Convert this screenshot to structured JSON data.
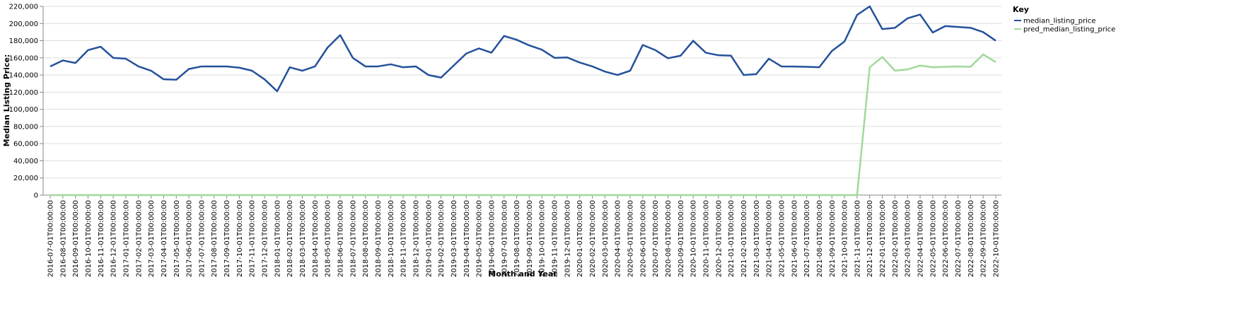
{
  "chart_data": {
    "type": "line",
    "x_label": "Month and Year",
    "y_label": "Median Listing Price:",
    "legend_title": "Key",
    "legend_position": "right",
    "grid": true,
    "categories": [
      "2016-07-01T00:00:00",
      "2016-08-01T00:00:00",
      "2016-09-01T00:00:00",
      "2016-10-01T00:00:00",
      "2016-11-01T00:00:00",
      "2016-12-01T00:00:00",
      "2017-01-01T00:00:00",
      "2017-02-01T00:00:00",
      "2017-03-01T00:00:00",
      "2017-04-01T00:00:00",
      "2017-05-01T00:00:00",
      "2017-06-01T00:00:00",
      "2017-07-01T00:00:00",
      "2017-08-01T00:00:00",
      "2017-09-01T00:00:00",
      "2017-10-01T00:00:00",
      "2017-11-01T00:00:00",
      "2017-12-01T00:00:00",
      "2018-01-01T00:00:00",
      "2018-02-01T00:00:00",
      "2018-03-01T00:00:00",
      "2018-04-01T00:00:00",
      "2018-05-01T00:00:00",
      "2018-06-01T00:00:00",
      "2018-07-01T00:00:00",
      "2018-08-01T00:00:00",
      "2018-09-01T00:00:00",
      "2018-10-01T00:00:00",
      "2018-11-01T00:00:00",
      "2018-12-01T00:00:00",
      "2019-01-01T00:00:00",
      "2019-02-01T00:00:00",
      "2019-03-01T00:00:00",
      "2019-04-01T00:00:00",
      "2019-05-01T00:00:00",
      "2019-06-01T00:00:00",
      "2019-07-01T00:00:00",
      "2019-08-01T00:00:00",
      "2019-09-01T00:00:00",
      "2019-10-01T00:00:00",
      "2019-11-01T00:00:00",
      "2019-12-01T00:00:00",
      "2020-01-01T00:00:00",
      "2020-02-01T00:00:00",
      "2020-03-01T00:00:00",
      "2020-04-01T00:00:00",
      "2020-05-01T00:00:00",
      "2020-06-01T00:00:00",
      "2020-07-01T00:00:00",
      "2020-08-01T00:00:00",
      "2020-09-01T00:00:00",
      "2020-10-01T00:00:00",
      "2020-11-01T00:00:00",
      "2020-12-01T00:00:00",
      "2021-01-01T00:00:00",
      "2021-02-01T00:00:00",
      "2021-03-01T00:00:00",
      "2021-04-01T00:00:00",
      "2021-05-01T00:00:00",
      "2021-06-01T00:00:00",
      "2021-07-01T00:00:00",
      "2021-08-01T00:00:00",
      "2021-09-01T00:00:00",
      "2021-10-01T00:00:00",
      "2021-11-01T00:00:00",
      "2021-12-01T00:00:00",
      "2022-01-01T00:00:00",
      "2022-02-01T00:00:00",
      "2022-03-01T00:00:00",
      "2022-04-01T00:00:00",
      "2022-05-01T00:00:00",
      "2022-06-01T00:00:00",
      "2022-07-01T00:00:00",
      "2022-08-01T00:00:00",
      "2022-09-01T00:00:00",
      "2022-10-01T00:00:00"
    ],
    "series": [
      {
        "name": "median_listing_price",
        "color": "#24519b",
        "values": [
          150000,
          157000,
          154000,
          169000,
          173000,
          160000,
          159000,
          150000,
          145000,
          135000,
          134500,
          147000,
          150000,
          150000,
          150000,
          148500,
          145000,
          135000,
          121000,
          149000,
          145000,
          150000,
          172000,
          186500,
          160000,
          150000,
          150000,
          152500,
          149000,
          150000,
          140000,
          137000,
          151000,
          165000,
          171000,
          166000,
          185500,
          181000,
          174500,
          169500,
          160000,
          160500,
          154500,
          150000,
          144000,
          140000,
          145000,
          175000,
          169000,
          159500,
          162500,
          179900,
          166000,
          163000,
          162500,
          140000,
          141000,
          159000,
          150000,
          149900,
          149500,
          149000,
          168000,
          179000,
          210000,
          220000,
          193500,
          195000,
          206000,
          210500,
          189500,
          197000,
          196000,
          195000,
          190000,
          180000
        ]
      },
      {
        "name": "pred_median_listing_price",
        "color": "#a1d99b",
        "values": [
          0,
          0,
          0,
          0,
          0,
          0,
          0,
          0,
          0,
          0,
          0,
          0,
          0,
          0,
          0,
          0,
          0,
          0,
          0,
          0,
          0,
          0,
          0,
          0,
          0,
          0,
          0,
          0,
          0,
          0,
          0,
          0,
          0,
          0,
          0,
          0,
          0,
          0,
          0,
          0,
          0,
          0,
          0,
          0,
          0,
          0,
          0,
          0,
          0,
          0,
          0,
          0,
          0,
          0,
          0,
          0,
          0,
          0,
          0,
          0,
          0,
          0,
          0,
          0,
          0,
          149000,
          161000,
          145000,
          146500,
          151000,
          149000,
          149500,
          150000,
          149500,
          164000,
          155000
        ]
      }
    ],
    "ylim": [
      0,
      220000
    ],
    "yticks": [
      0,
      {
        "value": 20000,
        "label": "20,000"
      },
      {
        "value": 40000,
        "label": "40,000"
      },
      {
        "value": 60000,
        "label": "60,000"
      },
      {
        "value": 80000,
        "label": "80,000"
      },
      {
        "value": 100000,
        "label": "100,000"
      },
      {
        "value": 120000,
        "label": "120,000"
      },
      {
        "value": 140000,
        "label": "140,000"
      },
      {
        "value": 160000,
        "label": "160,000"
      },
      {
        "value": 180000,
        "label": "180,000"
      },
      {
        "value": 200000,
        "label": "200,000"
      },
      {
        "value": 220000,
        "label": "220,000"
      }
    ]
  }
}
